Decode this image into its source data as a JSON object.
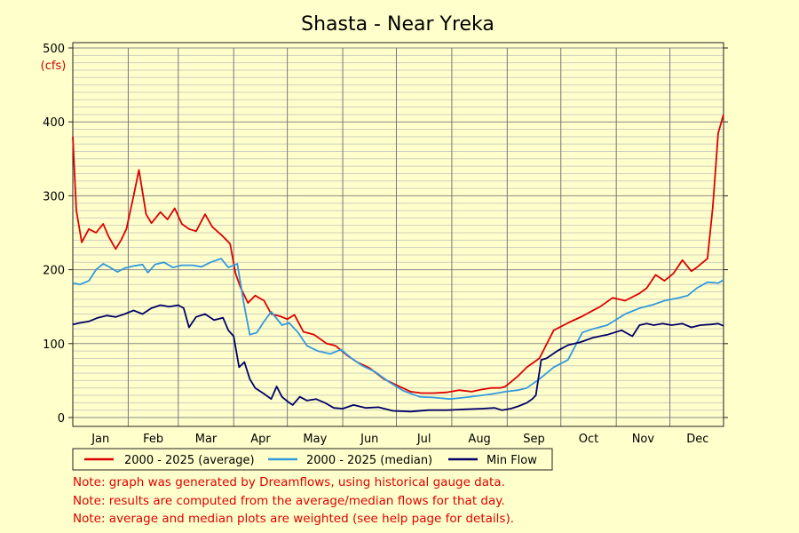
{
  "chart_data": {
    "type": "line",
    "title": "Shasta - Near Yreka",
    "unit_label": "(cfs)",
    "ylim": [
      0,
      500
    ],
    "yticks": [
      0,
      100,
      200,
      300,
      400,
      500
    ],
    "x_range_days": [
      1,
      365
    ],
    "months": [
      "Jan",
      "Feb",
      "Mar",
      "Apr",
      "May",
      "Jun",
      "Jul",
      "Aug",
      "Sep",
      "Oct",
      "Nov",
      "Dec"
    ],
    "grid": true,
    "legend_position": "bottom",
    "series": [
      {
        "name": "2000 - 2025 (average)",
        "color": "#dd0000",
        "x": [
          1,
          3,
          6,
          10,
          14,
          18,
          21,
          25,
          28,
          31,
          35,
          38,
          42,
          45,
          50,
          54,
          58,
          62,
          66,
          70,
          75,
          79,
          85,
          89,
          92,
          95,
          99,
          103,
          108,
          112,
          117,
          121,
          125,
          130,
          136,
          143,
          148,
          155,
          160,
          167,
          175,
          182,
          190,
          196,
          203,
          210,
          217,
          224,
          230,
          235,
          240,
          243,
          246,
          250,
          255,
          262,
          270,
          278,
          286,
          292,
          296,
          303,
          310,
          318,
          322,
          327,
          332,
          337,
          342,
          347,
          350,
          356,
          359,
          362,
          365
        ],
        "y": [
          380,
          280,
          237,
          255,
          250,
          262,
          245,
          228,
          240,
          255,
          300,
          335,
          275,
          263,
          278,
          268,
          283,
          262,
          255,
          252,
          275,
          258,
          245,
          235,
          195,
          175,
          155,
          165,
          158,
          140,
          137,
          133,
          139,
          116,
          112,
          100,
          97,
          83,
          75,
          67,
          52,
          44,
          35,
          33,
          33,
          34,
          37,
          35,
          38,
          40,
          40,
          42,
          48,
          56,
          68,
          80,
          118,
          128,
          137,
          145,
          150,
          162,
          158,
          168,
          175,
          193,
          185,
          195,
          213,
          198,
          203,
          215,
          285,
          385,
          410
        ]
      },
      {
        "name": "2000 - 2025 (median)",
        "color": "#3399dd",
        "x": [
          1,
          5,
          10,
          14,
          18,
          22,
          26,
          30,
          35,
          40,
          43,
          47,
          52,
          57,
          62,
          68,
          73,
          78,
          84,
          88,
          93,
          97,
          100,
          104,
          108,
          112,
          118,
          122,
          127,
          132,
          138,
          145,
          151,
          157,
          163,
          170,
          178,
          186,
          195,
          203,
          212,
          220,
          230,
          236,
          243,
          250,
          255,
          262,
          270,
          278,
          286,
          292,
          300,
          310,
          318,
          326,
          332,
          340,
          345,
          350,
          356,
          362,
          365
        ],
        "y": [
          182,
          180,
          185,
          200,
          208,
          203,
          197,
          202,
          205,
          207,
          196,
          207,
          210,
          203,
          206,
          206,
          204,
          210,
          215,
          203,
          208,
          150,
          112,
          115,
          130,
          143,
          125,
          128,
          115,
          97,
          90,
          86,
          92,
          80,
          70,
          62,
          48,
          36,
          28,
          27,
          25,
          27,
          30,
          32,
          35,
          37,
          40,
          52,
          68,
          78,
          115,
          120,
          125,
          140,
          148,
          153,
          158,
          162,
          165,
          175,
          183,
          182,
          186
        ]
      },
      {
        "name": "Min Flow",
        "color": "#000066",
        "x": [
          1,
          5,
          10,
          15,
          20,
          25,
          30,
          35,
          40,
          45,
          50,
          55,
          60,
          63,
          66,
          70,
          75,
          80,
          85,
          88,
          91,
          94,
          97,
          100,
          103,
          108,
          112,
          115,
          118,
          121,
          124,
          128,
          132,
          137,
          142,
          147,
          152,
          158,
          165,
          172,
          180,
          190,
          200,
          210,
          220,
          230,
          237,
          241,
          246,
          250,
          255,
          258,
          260,
          263,
          266,
          272,
          278,
          285,
          292,
          300,
          308,
          314,
          318,
          322,
          326,
          331,
          336,
          342,
          347,
          352,
          358,
          362,
          365
        ],
        "y": [
          126,
          128,
          130,
          135,
          138,
          136,
          140,
          145,
          140,
          148,
          152,
          150,
          152,
          148,
          122,
          136,
          140,
          132,
          135,
          118,
          110,
          68,
          75,
          52,
          40,
          32,
          25,
          42,
          28,
          22,
          17,
          28,
          23,
          25,
          20,
          13,
          12,
          17,
          13,
          14,
          9,
          8,
          10,
          10,
          11,
          12,
          13,
          10,
          12,
          15,
          20,
          25,
          30,
          78,
          80,
          90,
          98,
          102,
          108,
          112,
          118,
          110,
          125,
          127,
          125,
          127,
          125,
          127,
          122,
          125,
          126,
          127,
          124
        ]
      }
    ]
  },
  "notes": [
    "Note: graph was generated by Dreamflows, using historical gauge data.",
    "Note: results are computed from the average/median flows for that day.",
    "Note: average and median plots are weighted (see help page for details)."
  ]
}
